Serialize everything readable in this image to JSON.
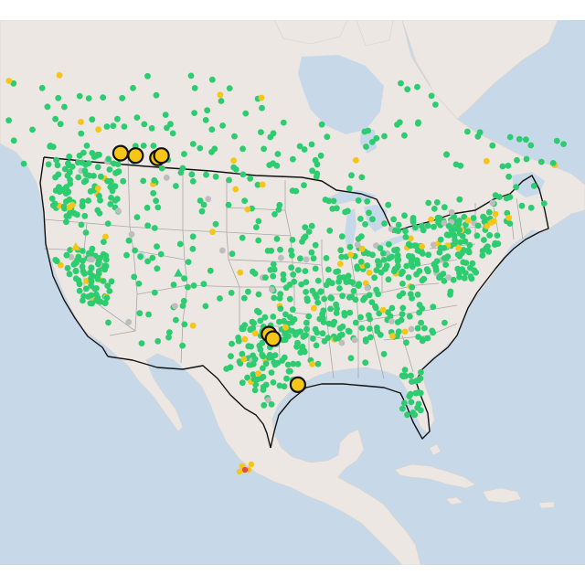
{
  "map": {
    "colors": {
      "ocean": "#c7d9e8",
      "land": "#ede7e3",
      "land_edge": "#d9d2cc",
      "lake": "#c7d9e8",
      "state_border": "#a9a9a9",
      "country_border": "#111111",
      "good": "#2ecc71",
      "moderate": "#f5c518",
      "unhealthy": "#e74c3c",
      "no_data": "#bdbdbd",
      "highlight_stroke": "#111111"
    },
    "marker_legend_semantics": [
      "good",
      "moderate",
      "unhealthy",
      "no-data"
    ],
    "highlighted_sites": [
      {
        "lat": 47.6,
        "lon": -117.3,
        "level": "moderate"
      },
      {
        "lat": 47.4,
        "lon": -115.8,
        "level": "moderate"
      },
      {
        "lat": 47.2,
        "lon": -113.6,
        "level": "moderate"
      },
      {
        "lat": 47.4,
        "lon": -113.2,
        "level": "moderate"
      },
      {
        "lat": 31.9,
        "lon": -102.4,
        "level": "moderate"
      },
      {
        "lat": 31.5,
        "lon": -102.0,
        "level": "moderate"
      },
      {
        "lat": 27.5,
        "lon": -99.5,
        "level": "moderate"
      }
    ],
    "triangle_sites": [
      {
        "lat": 39.5,
        "lon": -121.8,
        "level": "moderate"
      },
      {
        "lat": 37.2,
        "lon": -111.5,
        "level": "good"
      }
    ]
  }
}
